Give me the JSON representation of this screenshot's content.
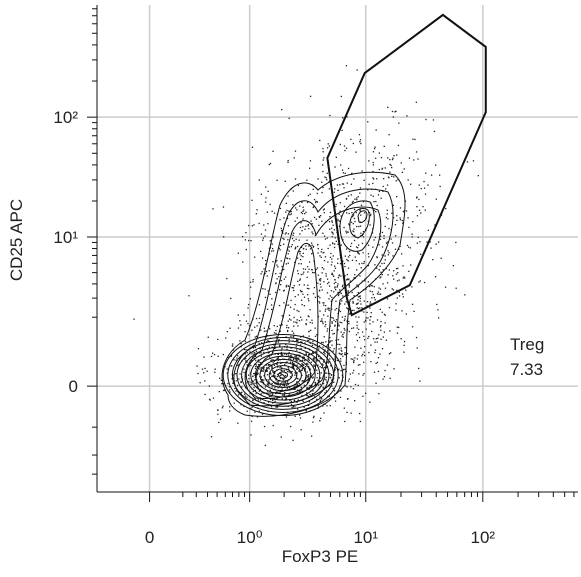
{
  "chart_data": {
    "type": "contour",
    "x_label": "FoxP3 PE",
    "y_label": "CD25 APC",
    "scale": "biexponential",
    "xlim": [
      -0.35,
      650
    ],
    "ylim": [
      -4.3,
      860
    ],
    "xticks": [
      {
        "value": 0,
        "label": "0"
      },
      {
        "value": 1,
        "label": "10⁰"
      },
      {
        "value": 10,
        "label": "10¹"
      },
      {
        "value": 100,
        "label": "10²"
      }
    ],
    "yticks": [
      {
        "value": 0,
        "label": "0"
      },
      {
        "value": 10,
        "label": "10¹"
      },
      {
        "value": 100,
        "label": "10²"
      }
    ],
    "xminor": [
      0.2,
      0.3,
      0.4,
      0.5,
      0.6,
      0.7,
      0.8,
      0.9,
      2,
      3,
      4,
      5,
      6,
      7,
      8,
      9,
      20,
      30,
      40,
      50,
      60,
      70,
      80,
      90,
      200,
      300,
      400,
      500,
      600
    ],
    "yminor": [
      -3,
      -2,
      -1,
      2,
      3,
      4,
      5,
      6,
      7,
      8,
      9,
      20,
      30,
      40,
      50,
      60,
      70,
      80,
      90,
      200,
      300,
      400,
      500,
      600,
      700,
      800
    ],
    "grid": true,
    "gate": {
      "name": "Treg",
      "percent": 7.33,
      "x": [
        4.7,
        9.8,
        45.6,
        106,
        106,
        23.8,
        7.6,
        6.9
      ],
      "y": [
        45.7,
        233,
        711,
        385,
        110,
        3.9,
        2.1,
        3.0
      ]
    }
  }
}
